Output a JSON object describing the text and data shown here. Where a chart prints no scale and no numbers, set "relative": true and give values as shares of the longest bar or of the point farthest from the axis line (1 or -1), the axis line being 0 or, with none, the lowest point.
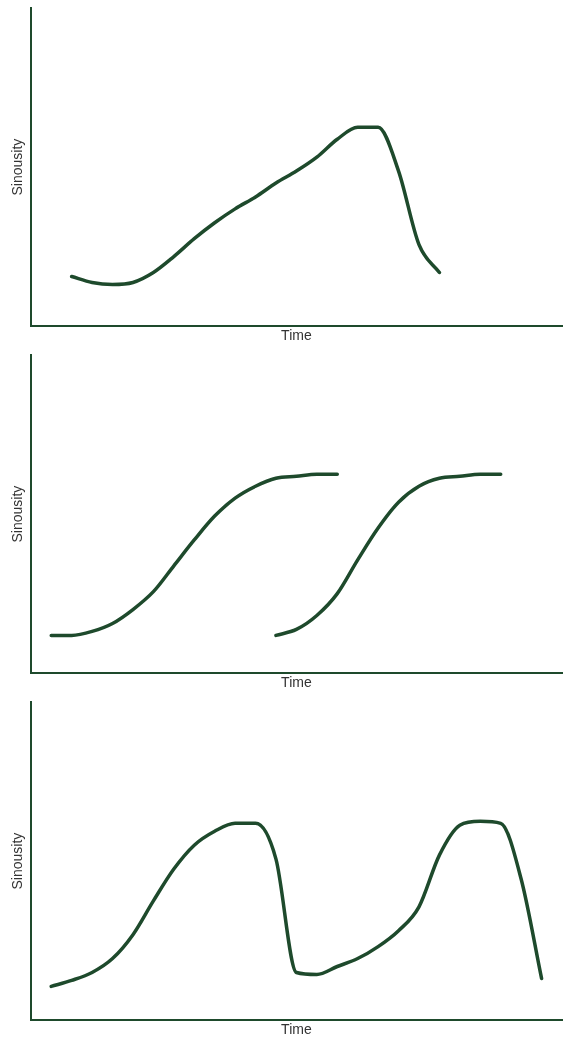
{
  "chart_data": [
    {
      "type": "line",
      "xlabel": "Time",
      "ylabel": "Sinousity",
      "relative": true,
      "categories": [
        null,
        null,
        null,
        null,
        null,
        null,
        null,
        null,
        null,
        null,
        null,
        null,
        null,
        null,
        null,
        null,
        null,
        null,
        null,
        null,
        null,
        null,
        null,
        null,
        null,
        null,
        null
      ],
      "series": [
        {
          "color": "#1e4a2c",
          "values": [
            null,
            null,
            0.25,
            0.22,
            0.21,
            0.22,
            0.27,
            0.35,
            0.44,
            0.52,
            0.59,
            0.65,
            0.72,
            0.78,
            0.85,
            0.94,
            1,
            1,
            0.78,
            0.41,
            0.27,
            null,
            null,
            null,
            null,
            null,
            null
          ]
        }
      ]
    },
    {
      "type": "line",
      "xlabel": "Time",
      "ylabel": "Sinousity",
      "relative": true,
      "categories": [
        null,
        null,
        null,
        null,
        null,
        null,
        null,
        null,
        null,
        null,
        null,
        null,
        null,
        null,
        null,
        null,
        null,
        null,
        null,
        null,
        null,
        null,
        null,
        null,
        null,
        null,
        null
      ],
      "series": [
        {
          "color": "#1e4a2c",
          "values": [
            null,
            0.19,
            0.19,
            0.21,
            0.25,
            0.32,
            0.41,
            0.54,
            0.67,
            0.79,
            0.88,
            0.94,
            0.98,
            0.99,
            1,
            1,
            null,
            null,
            null,
            null,
            null,
            null,
            null,
            null,
            null,
            null,
            null
          ]
        },
        {
          "color": "#1e4a2c",
          "values": [
            null,
            null,
            null,
            null,
            null,
            null,
            null,
            null,
            null,
            null,
            null,
            null,
            0.19,
            0.22,
            0.29,
            0.4,
            0.57,
            0.73,
            0.86,
            0.94,
            0.98,
            0.99,
            1,
            1,
            null,
            null,
            null
          ]
        }
      ]
    },
    {
      "type": "line",
      "xlabel": "Time",
      "ylabel": "Sinousity",
      "relative": true,
      "categories": [
        null,
        null,
        null,
        null,
        null,
        null,
        null,
        null,
        null,
        null,
        null,
        null,
        null,
        null,
        null,
        null,
        null,
        null,
        null,
        null,
        null,
        null,
        null,
        null,
        null,
        null,
        null
      ],
      "series": [
        {
          "color": "#1e4a2c",
          "values": [
            null,
            0.17,
            0.2,
            0.24,
            0.31,
            0.43,
            0.6,
            0.76,
            0.88,
            0.95,
            0.99,
            0.99,
            0.81,
            0.24,
            0.23,
            0.27,
            0.31,
            0.37,
            0.45,
            0.57,
            0.83,
            0.98,
            1,
            0.99,
            0.71,
            0.21,
            null
          ]
        }
      ]
    }
  ]
}
